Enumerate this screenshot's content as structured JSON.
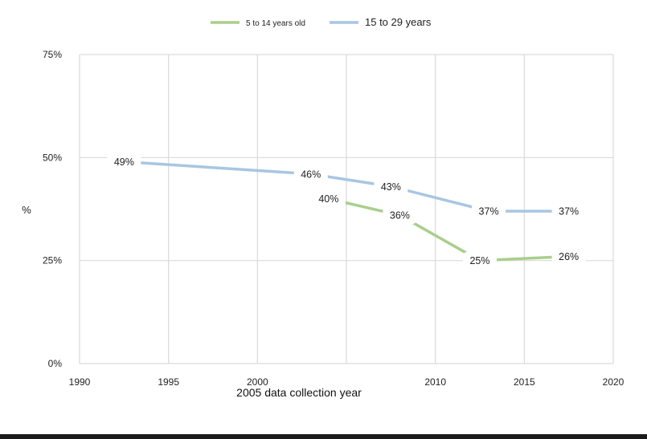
{
  "chart_data": {
    "type": "line",
    "title": "",
    "xlabel": "2005 data collection year",
    "ylabel": "%",
    "xlim": [
      1990,
      2020
    ],
    "ylim": [
      0,
      75
    ],
    "grid": true,
    "legend_position": "top-center",
    "x_ticks": [
      "1990",
      "1995",
      "2000",
      "2010",
      "2015",
      "2020"
    ],
    "y_ticks": [
      "75%",
      "50%",
      "25%",
      "0%"
    ],
    "series": [
      {
        "name": "5 to 14 years old",
        "color": "#a9cf8c",
        "points": [
          {
            "x": 2004,
            "y": 40,
            "label": "40%"
          },
          {
            "x": 2008,
            "y": 36,
            "label": "36%"
          },
          {
            "x": 2012.5,
            "y": 25,
            "label": "25%"
          },
          {
            "x": 2017.5,
            "y": 26,
            "label": "26%"
          }
        ]
      },
      {
        "name": "15 to 29 years",
        "color": "#a8c6e2",
        "points": [
          {
            "x": 1992.5,
            "y": 49,
            "label": "49%"
          },
          {
            "x": 2003,
            "y": 46,
            "label": "46%"
          },
          {
            "x": 2007.5,
            "y": 43,
            "label": "43%"
          },
          {
            "x": 2013,
            "y": 37,
            "label": "37%"
          },
          {
            "x": 2017.5,
            "y": 37,
            "label": "37%"
          }
        ]
      }
    ]
  }
}
